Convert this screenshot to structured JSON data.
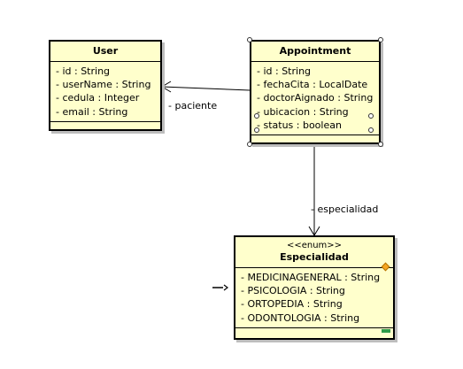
{
  "classes": {
    "user": {
      "name": "User",
      "attributes": [
        "- id : String",
        "- userName : String",
        "- cedula : Integer",
        "- email : String"
      ]
    },
    "appointment": {
      "name": "Appointment",
      "attributes": [
        "- id : String",
        "- fechaCita : LocalDate",
        "- doctorAignado : String",
        "- ubicacion : String",
        "- status : boolean"
      ]
    },
    "especialidad": {
      "stereotype": "<<enum>>",
      "name": "Especialidad",
      "attributes": [
        "- MEDICINAGENERAL : String",
        "- PSICOLOGIA : String",
        "- ORTOPEDIA : String",
        "- ODONTOLOGIA : String"
      ]
    }
  },
  "associations": {
    "paciente_label": "- paciente",
    "especialidad_label": "- especialidad"
  },
  "colors": {
    "class_fill": "#ffffcc",
    "handle_orange": "#f5a623",
    "handle_green": "#2e9b47"
  }
}
